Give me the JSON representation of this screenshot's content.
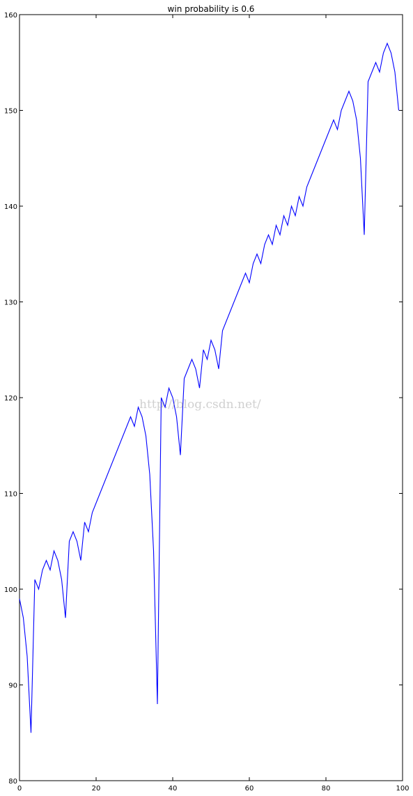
{
  "chart_data": {
    "type": "line",
    "title": "win probability is 0.6",
    "xlabel": "",
    "ylabel": "",
    "xlim": [
      0,
      100
    ],
    "ylim": [
      80,
      160
    ],
    "xticks": [
      0,
      20,
      40,
      60,
      80,
      100
    ],
    "yticks": [
      80,
      90,
      100,
      110,
      120,
      130,
      140,
      150,
      160
    ],
    "grid": false,
    "line_color": "#0000ff",
    "series": [
      {
        "values": [
          99,
          97,
          93,
          85,
          101,
          100,
          102,
          103,
          102,
          104,
          103,
          101,
          97,
          105,
          106,
          105,
          103,
          107,
          106,
          108,
          109,
          110,
          111,
          112,
          113,
          114,
          115,
          116,
          117,
          118,
          117,
          119,
          118,
          116,
          112,
          104,
          88,
          120,
          119,
          121,
          120,
          118,
          114,
          122,
          123,
          124,
          123,
          121,
          125,
          124,
          126,
          125,
          123,
          127,
          128,
          129,
          130,
          131,
          132,
          133,
          132,
          134,
          135,
          134,
          136,
          137,
          136,
          138,
          137,
          139,
          138,
          140,
          139,
          141,
          140,
          142,
          143,
          144,
          145,
          146,
          147,
          148,
          149,
          148,
          150,
          151,
          152,
          151,
          149,
          145,
          137,
          153,
          154,
          155,
          154,
          156,
          157,
          156,
          154,
          150
        ]
      }
    ]
  },
  "watermark": "http://blog.csdn.net/"
}
